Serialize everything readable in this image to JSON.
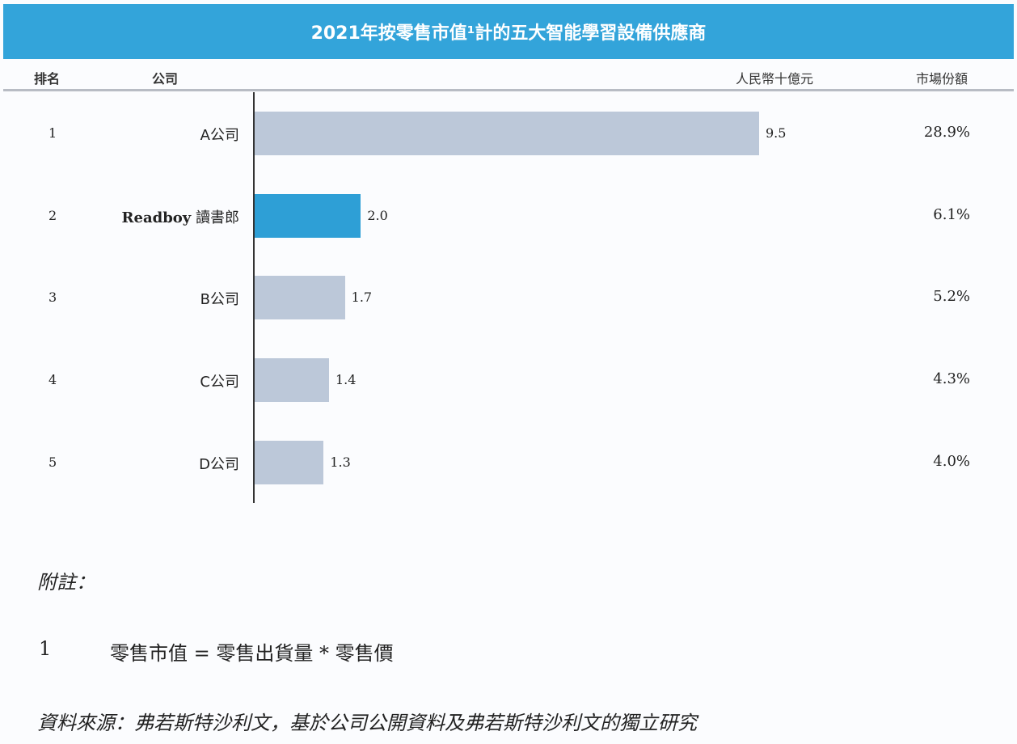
{
  "chart_data": {
    "type": "bar",
    "orientation": "horizontal",
    "title": "2021年按零售市值¹計的五大智能學習設備供應商",
    "columns": {
      "rank": "排名",
      "company": "公司",
      "value_unit": "人民幣十億元",
      "share": "市場份額"
    },
    "ranks": [
      "1",
      "2",
      "3",
      "4",
      "5"
    ],
    "categories": [
      "A公司",
      "Readboy 讀書郎",
      "B公司",
      "C公司",
      "D公司"
    ],
    "values": [
      9.5,
      2.0,
      1.7,
      1.4,
      1.3
    ],
    "value_labels": [
      "9.5",
      "2.0",
      "1.7",
      "1.4",
      "1.3"
    ],
    "shares": [
      "28.9%",
      "6.1%",
      "5.2%",
      "4.3%",
      "4.0%"
    ],
    "highlight_index": 1,
    "colors": {
      "bar": "#bcc8d9",
      "highlight": "#2e9fd6",
      "title_band": "#33a4da"
    }
  },
  "notes": {
    "heading": "附註：",
    "items": [
      {
        "num": "1",
        "text": "零售市值 = 零售出貨量 * 零售價"
      }
    ],
    "source": "資料來源：弗若斯特沙利文，基於公司公開資料及弗若斯特沙利文的獨立研究"
  }
}
